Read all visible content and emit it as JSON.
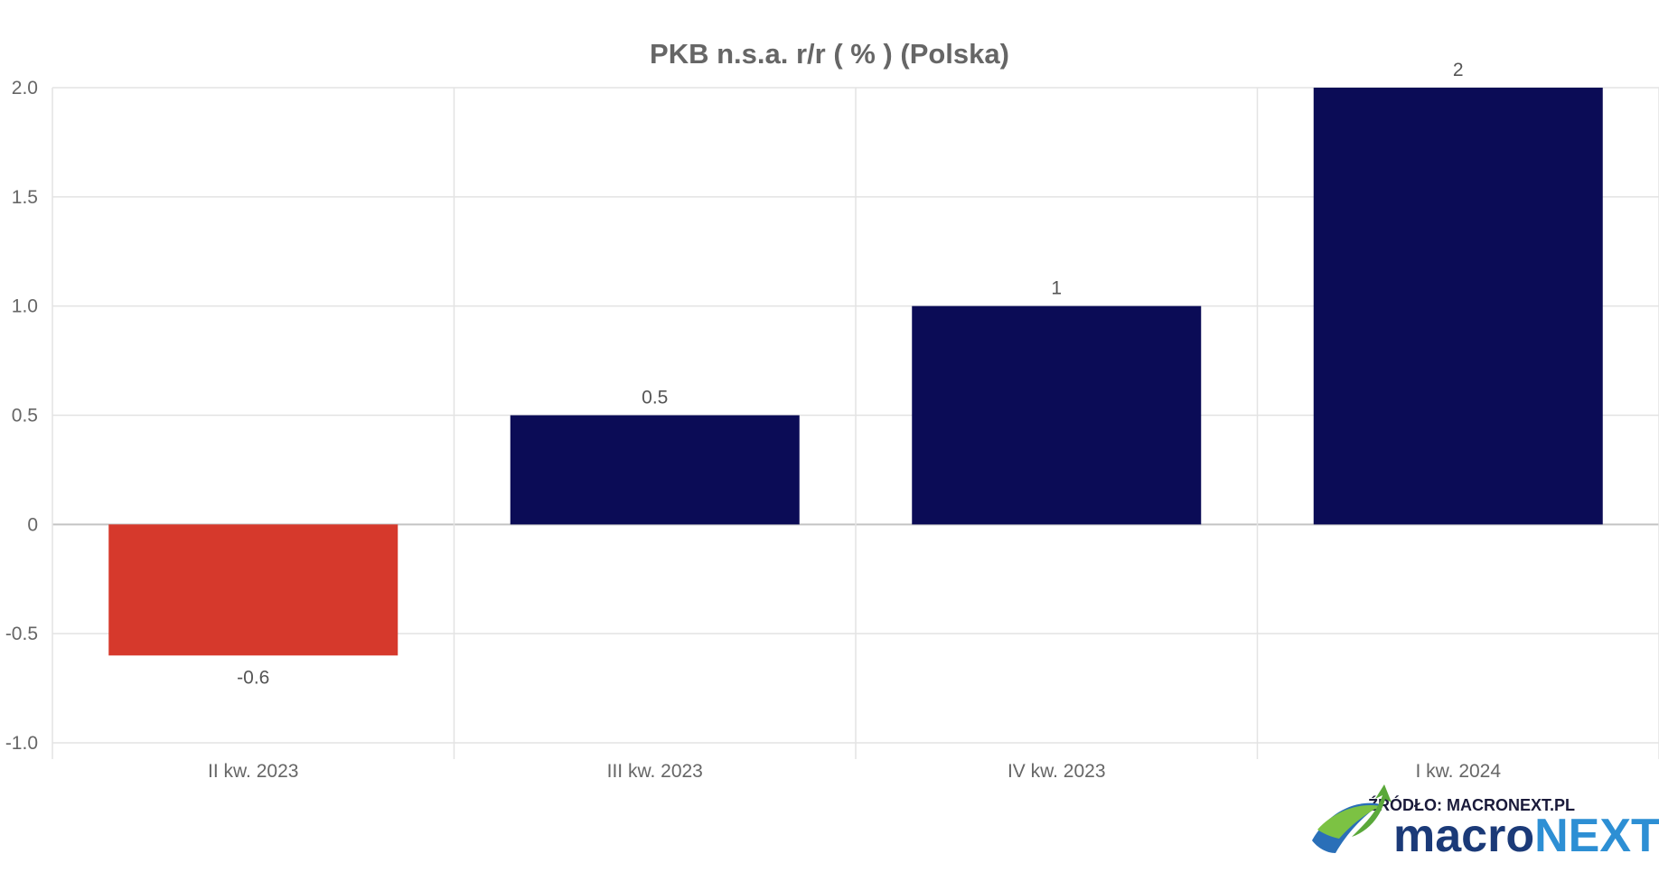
{
  "chart_data": {
    "type": "bar",
    "title": "PKB n.s.a. r/r ( % ) (Polska)",
    "xlabel": "",
    "ylabel": "",
    "categories": [
      "II kw. 2023",
      "III kw. 2023",
      "IV kw. 2023",
      "I kw. 2024"
    ],
    "values": [
      -0.6,
      0.5,
      1,
      2
    ],
    "value_labels": [
      "-0.6",
      "0.5",
      "1",
      "2"
    ],
    "ylim": [
      -1.0,
      2.0
    ],
    "yticks": [
      -1.0,
      -0.5,
      0,
      0.5,
      1.0,
      1.5,
      2.0
    ],
    "ytick_labels": [
      "-1.0",
      "-0.5",
      "0",
      "0.5",
      "1.0",
      "1.5",
      "2.0"
    ],
    "grid": true,
    "legend": "none",
    "colors": {
      "positive": "#0b0c56",
      "negative": "#d6392c",
      "grid": "#e3e3e3",
      "text": "#666666"
    }
  },
  "branding": {
    "source_label": "ŹRÓDŁO: MACRONEXT.PL",
    "logo_part1": "macro",
    "logo_part2": "NEXT",
    "logo_color1": "#1b3a78",
    "logo_color2": "#2d8fd4",
    "logo_icon": "swoosh-arrow-icon"
  }
}
